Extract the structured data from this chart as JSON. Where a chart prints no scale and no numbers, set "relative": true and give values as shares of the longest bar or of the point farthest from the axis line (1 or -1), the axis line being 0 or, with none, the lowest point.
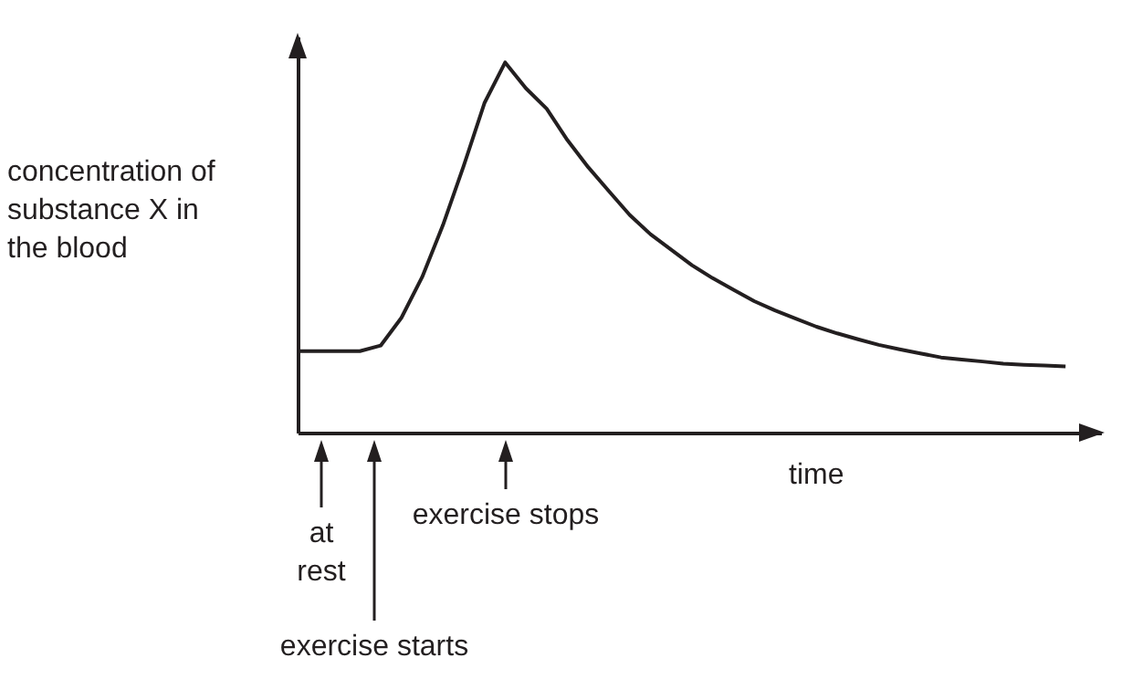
{
  "chart_data": {
    "type": "line",
    "relative": true,
    "xlabel": "time",
    "ylabel": "concentration of substance X in the blood",
    "categories": [
      null,
      null,
      null,
      null,
      null,
      null,
      null,
      null,
      null,
      null,
      null,
      null,
      null,
      null,
      null,
      null,
      null,
      null,
      null,
      null,
      null,
      null,
      null,
      null,
      null,
      null,
      null,
      null,
      null,
      null,
      null,
      null,
      null,
      null,
      null,
      null,
      null,
      null
    ],
    "series": [
      {
        "color": "#231f20",
        "values": [
          0.22,
          0.22,
          0.22,
          0.22,
          0.235,
          0.31,
          0.42,
          0.56,
          0.72,
          0.89,
          1.0,
          0.93,
          0.875,
          0.79,
          0.717,
          0.652,
          0.588,
          0.536,
          0.494,
          0.452,
          0.417,
          0.386,
          0.355,
          0.33,
          0.308,
          0.286,
          0.268,
          0.252,
          0.237,
          0.225,
          0.214,
          0.203,
          0.197,
          0.192,
          0.186,
          0.183,
          0.181,
          0.179
        ]
      }
    ],
    "annotations": [
      "at rest",
      "exercise starts",
      "exercise stops"
    ],
    "legend": false,
    "grid": false,
    "marker": "none",
    "line_style": "solid"
  }
}
